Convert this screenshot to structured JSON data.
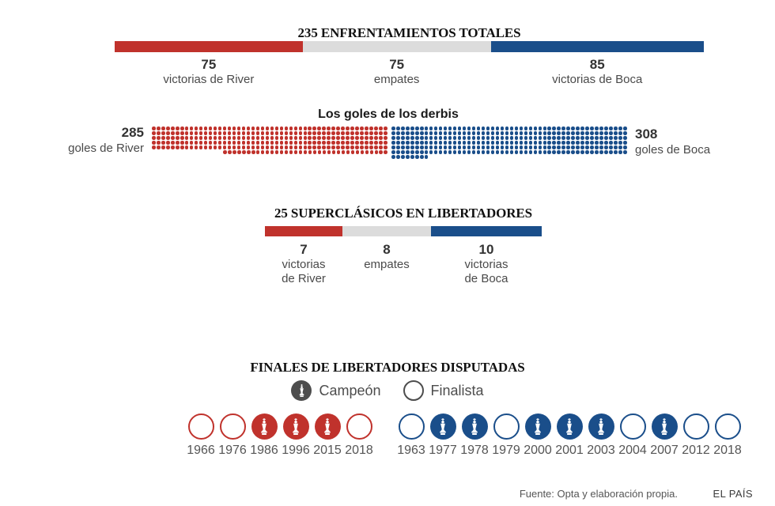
{
  "colors": {
    "river": "#c0322c",
    "boca": "#1a4e8a",
    "draw": "#dcdcdc",
    "champion_legend": "#4d4d4d"
  },
  "section_totals": {
    "title": "235 ENFRENTAMIENTOS TOTALES",
    "segments": [
      {
        "value": 75,
        "display": "75",
        "lines": [
          "victorias de River"
        ],
        "color": "river"
      },
      {
        "value": 75,
        "display": "75",
        "lines": [
          "empates"
        ],
        "color": "draw"
      },
      {
        "value": 85,
        "display": "85",
        "lines": [
          "victorias de Boca"
        ],
        "color": "boca"
      }
    ]
  },
  "section_goals": {
    "title": "Los goles de los derbis",
    "left_value": "285",
    "left_label": "goles de River",
    "right_value": "308",
    "right_label": "goles de Boca",
    "per_row": 50,
    "series": [
      {
        "name": "goles de River",
        "value": 285,
        "color": "river",
        "partial_align": "right"
      },
      {
        "name": "goles de Boca",
        "value": 308,
        "color": "boca",
        "partial_align": "left"
      }
    ]
  },
  "section_libertadores": {
    "title": "25 SUPERCLÁSICOS EN LIBERTADORES",
    "segments": [
      {
        "value": 7,
        "display": "7",
        "lines": [
          "victorias",
          "de River"
        ],
        "color": "river"
      },
      {
        "value": 8,
        "display": "8",
        "lines": [
          "empates"
        ],
        "color": "draw"
      },
      {
        "value": 10,
        "display": "10",
        "lines": [
          "victorias",
          "de Boca"
        ],
        "color": "boca"
      }
    ]
  },
  "section_finals": {
    "title": "FINALES DE LIBERTADORES DISPUTADAS",
    "legend_champion": "Campeón",
    "legend_finalist": "Finalista",
    "river": [
      {
        "year": "1966",
        "champion": false
      },
      {
        "year": "1976",
        "champion": false
      },
      {
        "year": "1986",
        "champion": true
      },
      {
        "year": "1996",
        "champion": true
      },
      {
        "year": "2015",
        "champion": true
      },
      {
        "year": "2018",
        "champion": false
      }
    ],
    "boca": [
      {
        "year": "1963",
        "champion": false
      },
      {
        "year": "1977",
        "champion": true
      },
      {
        "year": "1978",
        "champion": true
      },
      {
        "year": "1979",
        "champion": false
      },
      {
        "year": "2000",
        "champion": true
      },
      {
        "year": "2001",
        "champion": true
      },
      {
        "year": "2003",
        "champion": true
      },
      {
        "year": "2004",
        "champion": false
      },
      {
        "year": "2007",
        "champion": true
      },
      {
        "year": "2012",
        "champion": false
      },
      {
        "year": "2018",
        "champion": false
      }
    ]
  },
  "footer": {
    "source": "Fuente: Opta y elaboración propia.",
    "brand": "EL PAÍS"
  },
  "chart_data": [
    {
      "type": "bar",
      "subtype": "stacked-horizontal",
      "title": "235 ENFRENTAMIENTOS TOTALES",
      "categories": [
        "victorias de River",
        "empates",
        "victorias de Boca"
      ],
      "values": [
        75,
        75,
        85
      ],
      "total": 235,
      "colors": [
        "#c0322c",
        "#dcdcdc",
        "#1a4e8a"
      ]
    },
    {
      "type": "pictogram",
      "title": "Los goles de los derbis",
      "unit": "1 dot = 1 goal",
      "per_row": 50,
      "series": [
        {
          "name": "goles de River",
          "value": 285,
          "color": "#c0322c"
        },
        {
          "name": "goles de Boca",
          "value": 308,
          "color": "#1a4e8a"
        }
      ]
    },
    {
      "type": "bar",
      "subtype": "stacked-horizontal",
      "title": "25 SUPERCLÁSICOS EN LIBERTADORES",
      "categories": [
        "victorias de River",
        "empates",
        "victorias de Boca"
      ],
      "values": [
        7,
        8,
        10
      ],
      "total": 25,
      "colors": [
        "#c0322c",
        "#dcdcdc",
        "#1a4e8a"
      ]
    },
    {
      "type": "table",
      "title": "FINALES DE LIBERTADORES DISPUTADAS",
      "legend": [
        "Campeón",
        "Finalista"
      ],
      "river": {
        "champion_years": [
          1986,
          1996,
          2015
        ],
        "finalist_years": [
          1966,
          1976,
          2018
        ]
      },
      "boca": {
        "champion_years": [
          1977,
          1978,
          2000,
          2001,
          2003,
          2007
        ],
        "finalist_years": [
          1963,
          1979,
          2004,
          2012,
          2018
        ]
      }
    }
  ]
}
